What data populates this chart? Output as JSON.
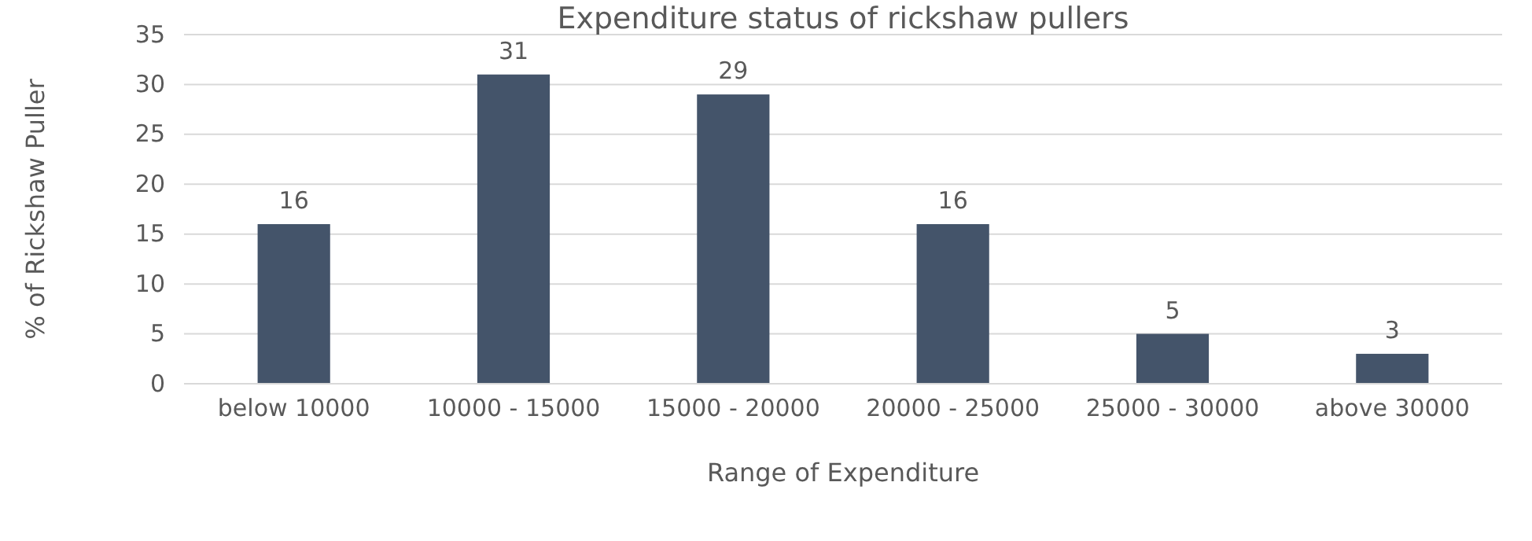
{
  "chart_data": {
    "type": "bar",
    "title": "Expenditure status of rickshaw pullers",
    "xlabel": "Range of Expenditure",
    "ylabel": "% of Rickshaw Puller",
    "categories": [
      "below 10000",
      "10000 - 15000",
      "15000 - 20000",
      "20000 - 25000",
      "25000 - 30000",
      "above 30000"
    ],
    "values": [
      16,
      31,
      29,
      16,
      5,
      3
    ],
    "color": "#44546a",
    "ylim": [
      0,
      35
    ],
    "yticks": [
      0,
      5,
      10,
      15,
      20,
      25,
      30,
      35
    ],
    "grid": "y",
    "data_labels": true
  }
}
